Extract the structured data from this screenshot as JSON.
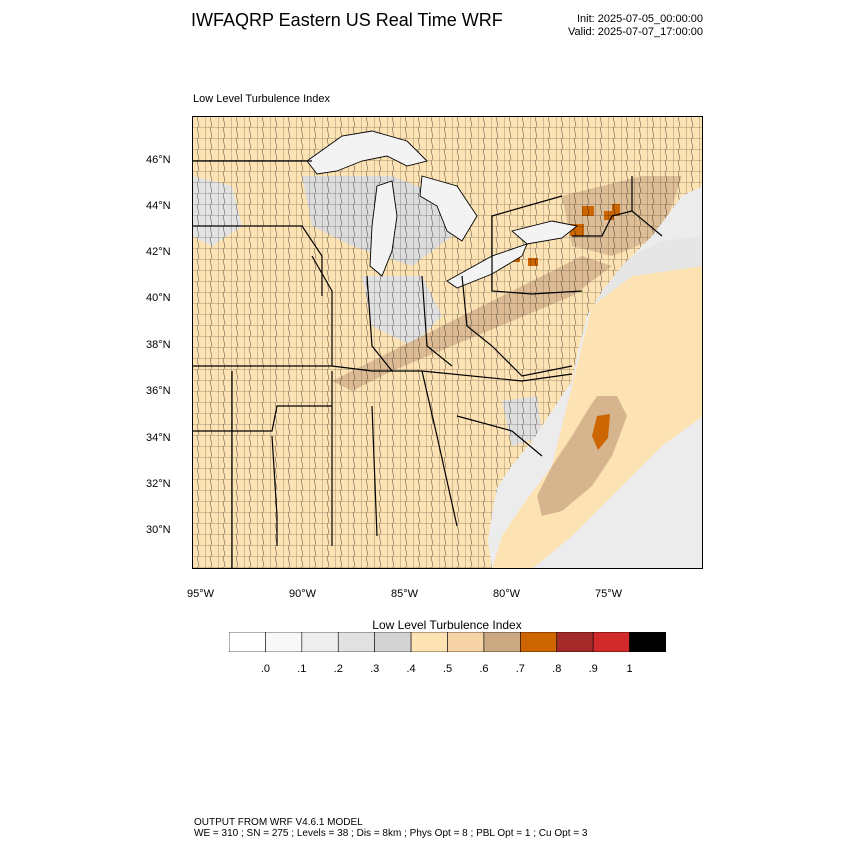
{
  "header": {
    "title": "IWFAQRP Eastern US Real Time WRF",
    "init": "Init: 2025-07-05_00:00:00",
    "valid": "Valid: 2025-07-07_17:00:00"
  },
  "map": {
    "field_title": "Low Level Turbulence Index",
    "lat_labels": [
      "46°N",
      "44°N",
      "42°N",
      "40°N",
      "38°N",
      "36°N",
      "34°N",
      "32°N",
      "30°N"
    ],
    "lon_labels": [
      "95°W",
      "90°W",
      "85°W",
      "80°W",
      "75°W"
    ],
    "colors": {
      "land_base": "#fde3b4",
      "water": "#f3f3f3",
      "gray_low": "#dcdcdc",
      "tan": "#d6b48e",
      "orange": "#cd6600",
      "boundary": "#000000"
    }
  },
  "colorbar": {
    "title": "Low Level Turbulence Index",
    "colors": [
      "#ffffff",
      "#f8f8f8",
      "#eeeeee",
      "#e1e1e1",
      "#d3d3d3",
      "#fde3b4",
      "#f5d3a6",
      "#c9a882",
      "#cd6600",
      "#a52a2a",
      "#d22a2a",
      "#000000"
    ],
    "labels": [
      ".0",
      ".1",
      ".2",
      ".3",
      ".4",
      ".5",
      ".6",
      ".7",
      ".8",
      ".9",
      "1"
    ]
  },
  "footer": {
    "line1": "OUTPUT FROM WRF V4.6.1 MODEL",
    "line2": "WE = 310 ; SN = 275 ; Levels = 38 ; Dis = 8km ; Phys Opt = 8 ; PBL Opt = 1 ; Cu Opt = 3"
  }
}
